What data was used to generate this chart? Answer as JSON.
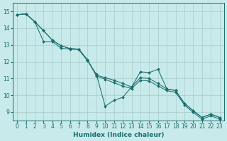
{
  "xlabel": "Humidex (Indice chaleur)",
  "background_color": "#c8eaea",
  "grid_color": "#a8cccc",
  "line_color": "#1a6e6e",
  "xlim": [
    -0.5,
    23.5
  ],
  "ylim": [
    8.5,
    15.5
  ],
  "xticks": [
    0,
    1,
    2,
    3,
    4,
    5,
    6,
    7,
    8,
    9,
    10,
    11,
    12,
    13,
    14,
    15,
    16,
    17,
    18,
    19,
    20,
    21,
    22,
    23
  ],
  "yticks": [
    9,
    10,
    11,
    12,
    13,
    14,
    15
  ],
  "line_zigzag_x": [
    0,
    1,
    2,
    3,
    4,
    5,
    6,
    7,
    8,
    9,
    10,
    11,
    12,
    13,
    14,
    15,
    16,
    17,
    18,
    19,
    20,
    21,
    22,
    23
  ],
  "line_zigzag_y": [
    14.8,
    14.85,
    14.38,
    13.2,
    13.2,
    12.8,
    12.75,
    12.72,
    12.05,
    11.25,
    9.35,
    9.7,
    9.88,
    10.5,
    11.4,
    11.35,
    11.55,
    10.38,
    10.28,
    9.52,
    9.08,
    8.68,
    8.88,
    8.68
  ],
  "line_smooth1_x": [
    0,
    1,
    2,
    3,
    4,
    5,
    6,
    7,
    8,
    9,
    10,
    11,
    12,
    13,
    14,
    15,
    16,
    17,
    18,
    19,
    20,
    21,
    22,
    23
  ],
  "line_smooth1_y": [
    14.8,
    14.85,
    14.38,
    13.85,
    13.28,
    12.95,
    12.78,
    12.75,
    12.1,
    11.2,
    11.05,
    10.9,
    10.7,
    10.5,
    11.05,
    11.0,
    10.7,
    10.38,
    10.28,
    9.52,
    9.08,
    8.68,
    8.88,
    8.68
  ],
  "line_smooth2_x": [
    0,
    1,
    2,
    3,
    4,
    5,
    6,
    7,
    8,
    9,
    10,
    11,
    12,
    13,
    14,
    15,
    16,
    17,
    18,
    19,
    20,
    21,
    22,
    23
  ],
  "line_smooth2_y": [
    14.8,
    14.85,
    14.38,
    13.85,
    13.28,
    12.95,
    12.78,
    12.75,
    12.1,
    11.15,
    10.95,
    10.75,
    10.55,
    10.4,
    10.9,
    10.85,
    10.55,
    10.28,
    10.18,
    9.42,
    8.98,
    8.58,
    8.78,
    8.58
  ]
}
